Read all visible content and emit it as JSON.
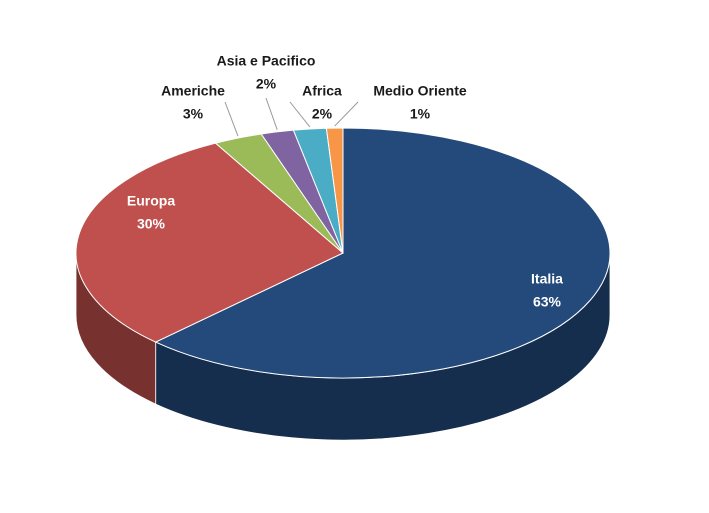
{
  "chart_data": {
    "type": "pie3d",
    "categories": [
      "Italia",
      "Europa",
      "Americhe",
      "Asia e Pacifico",
      "Africa",
      "Medio Oriente"
    ],
    "values": [
      63,
      30,
      3,
      2,
      2,
      1
    ],
    "value_labels": [
      "63%",
      "30%",
      "3%",
      "2%",
      "2%",
      "1%"
    ],
    "colors": [
      "#244a7c",
      "#c0504d",
      "#9bbb59",
      "#8064a2",
      "#4bacc6",
      "#f79646"
    ]
  }
}
